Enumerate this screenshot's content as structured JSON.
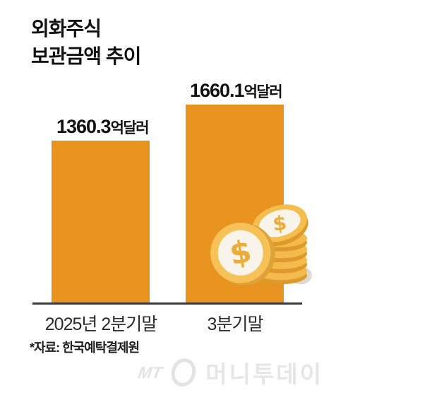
{
  "title": {
    "text": "외화주식\n보관금액 추이"
  },
  "chart_data": {
    "type": "bar",
    "title": "외화주식 보관금액 추이",
    "categories": [
      "2025년 2분기말",
      "3분기말"
    ],
    "values": [
      1360.3,
      1660.1
    ],
    "value_suffix": "억달러",
    "value_labels": [
      "1360.3억달러",
      "1660.1억달러"
    ],
    "baseline": 0,
    "y_axis_visible": false,
    "grid": false,
    "legend": false,
    "bar_color": "#E8921F",
    "axis_color": "#3B3B3B",
    "label_color": "#111111"
  },
  "source_note": "*자료: 한국예탁결제원",
  "watermark": {
    "abbr": "MT",
    "name": "머니투데이"
  },
  "icons": {
    "coins": "gold-dollar-coins",
    "coin_gold": "#F5BD4E",
    "coin_edge": "#DD9A2B",
    "coin_face": "#F8F4EA",
    "dollar_sign": "#ECAC3C"
  }
}
